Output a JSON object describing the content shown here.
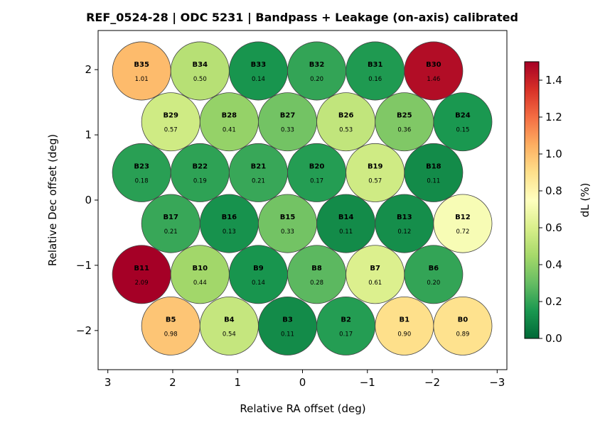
{
  "chart_data": {
    "type": "scatter",
    "title": "REF_0524-28  |  ODC 5231  |  Bandpass + Leakage (on-axis) calibrated",
    "xlabel": "Relative RA offset (deg)",
    "ylabel": "Relative Dec offset (deg)",
    "xlim": [
      3.15,
      -3.15
    ],
    "ylim": [
      -2.6,
      2.6
    ],
    "xticks": [
      3,
      2,
      1,
      0,
      -1,
      -2,
      -3
    ],
    "xtick_labels": [
      "3",
      "2",
      "1",
      "0",
      "−1",
      "−2",
      "−3"
    ],
    "yticks": [
      2,
      1,
      0,
      -1,
      -2
    ],
    "ytick_labels": [
      "2",
      "1",
      "0",
      "−1",
      "−2"
    ],
    "grid": false,
    "colorbar": {
      "label": "dL  (%)",
      "range": [
        0,
        1.5
      ],
      "colormap": "RdYlGn_r",
      "ticks": [
        0.0,
        0.2,
        0.4,
        0.6,
        0.8,
        1.0,
        1.2,
        1.4
      ],
      "tick_labels": [
        "0.0",
        "0.2",
        "0.4",
        "0.6",
        "0.8",
        "1.0",
        "1.2",
        "1.4"
      ],
      "stops": [
        "#006837",
        "#1a9850",
        "#66bd63",
        "#a6d96a",
        "#d9ef8b",
        "#ffffbf",
        "#fee08b",
        "#fdae61",
        "#f46d43",
        "#d73027",
        "#a50026"
      ]
    },
    "beam_radius_deg": 0.45,
    "beams": [
      {
        "name": "B35",
        "ra": 2.48,
        "dec": 1.98,
        "value": 1.01,
        "label": "1.01"
      },
      {
        "name": "B34",
        "ra": 1.58,
        "dec": 1.98,
        "value": 0.5,
        "label": "0.50"
      },
      {
        "name": "B33",
        "ra": 0.68,
        "dec": 1.98,
        "value": 0.14,
        "label": "0.14"
      },
      {
        "name": "B32",
        "ra": -0.22,
        "dec": 1.98,
        "value": 0.2,
        "label": "0.20"
      },
      {
        "name": "B31",
        "ra": -1.12,
        "dec": 1.98,
        "value": 0.16,
        "label": "0.16"
      },
      {
        "name": "B30",
        "ra": -2.02,
        "dec": 1.98,
        "value": 1.46,
        "label": "1.46"
      },
      {
        "name": "B29",
        "ra": 2.03,
        "dec": 1.2,
        "value": 0.57,
        "label": "0.57"
      },
      {
        "name": "B28",
        "ra": 1.13,
        "dec": 1.2,
        "value": 0.41,
        "label": "0.41"
      },
      {
        "name": "B27",
        "ra": 0.23,
        "dec": 1.2,
        "value": 0.33,
        "label": "0.33"
      },
      {
        "name": "B26",
        "ra": -0.67,
        "dec": 1.2,
        "value": 0.53,
        "label": "0.53"
      },
      {
        "name": "B25",
        "ra": -1.57,
        "dec": 1.2,
        "value": 0.36,
        "label": "0.36"
      },
      {
        "name": "B24",
        "ra": -2.47,
        "dec": 1.2,
        "value": 0.15,
        "label": "0.15"
      },
      {
        "name": "B23",
        "ra": 2.48,
        "dec": 0.42,
        "value": 0.18,
        "label": "0.18"
      },
      {
        "name": "B22",
        "ra": 1.58,
        "dec": 0.42,
        "value": 0.19,
        "label": "0.19"
      },
      {
        "name": "B21",
        "ra": 0.68,
        "dec": 0.42,
        "value": 0.21,
        "label": "0.21"
      },
      {
        "name": "B20",
        "ra": -0.22,
        "dec": 0.42,
        "value": 0.17,
        "label": "0.17"
      },
      {
        "name": "B19",
        "ra": -1.12,
        "dec": 0.42,
        "value": 0.57,
        "label": "0.57"
      },
      {
        "name": "B18",
        "ra": -2.02,
        "dec": 0.42,
        "value": 0.11,
        "label": "0.11"
      },
      {
        "name": "B17",
        "ra": 2.03,
        "dec": -0.36,
        "value": 0.21,
        "label": "0.21"
      },
      {
        "name": "B16",
        "ra": 1.13,
        "dec": -0.36,
        "value": 0.13,
        "label": "0.13"
      },
      {
        "name": "B15",
        "ra": 0.23,
        "dec": -0.36,
        "value": 0.33,
        "label": "0.33"
      },
      {
        "name": "B14",
        "ra": -0.67,
        "dec": -0.36,
        "value": 0.11,
        "label": "0.11"
      },
      {
        "name": "B13",
        "ra": -1.57,
        "dec": -0.36,
        "value": 0.12,
        "label": "0.12"
      },
      {
        "name": "B12",
        "ra": -2.47,
        "dec": -0.36,
        "value": 0.72,
        "label": "0.72"
      },
      {
        "name": "B11",
        "ra": 2.48,
        "dec": -1.14,
        "value": 2.09,
        "label": "2.09"
      },
      {
        "name": "B10",
        "ra": 1.58,
        "dec": -1.14,
        "value": 0.44,
        "label": "0.44"
      },
      {
        "name": "B9",
        "ra": 0.68,
        "dec": -1.14,
        "value": 0.14,
        "label": "0.14"
      },
      {
        "name": "B8",
        "ra": -0.22,
        "dec": -1.14,
        "value": 0.28,
        "label": "0.28"
      },
      {
        "name": "B7",
        "ra": -1.12,
        "dec": -1.14,
        "value": 0.61,
        "label": "0.61"
      },
      {
        "name": "B6",
        "ra": -2.02,
        "dec": -1.14,
        "value": 0.2,
        "label": "0.20"
      },
      {
        "name": "B5",
        "ra": 2.03,
        "dec": -1.93,
        "value": 0.98,
        "label": "0.98"
      },
      {
        "name": "B4",
        "ra": 1.13,
        "dec": -1.93,
        "value": 0.54,
        "label": "0.54"
      },
      {
        "name": "B3",
        "ra": 0.23,
        "dec": -1.93,
        "value": 0.11,
        "label": "0.11"
      },
      {
        "name": "B2",
        "ra": -0.67,
        "dec": -1.93,
        "value": 0.17,
        "label": "0.17"
      },
      {
        "name": "B1",
        "ra": -1.57,
        "dec": -1.93,
        "value": 0.9,
        "label": "0.90"
      },
      {
        "name": "B0",
        "ra": -2.47,
        "dec": -1.93,
        "value": 0.89,
        "label": "0.89"
      }
    ]
  }
}
